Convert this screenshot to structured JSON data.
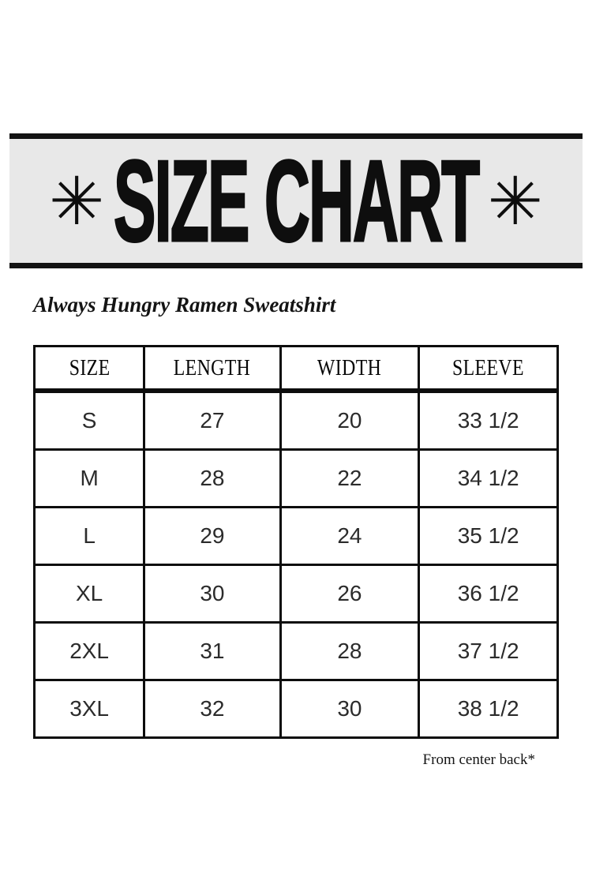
{
  "banner": {
    "title": "SIZE CHART",
    "asterisk": "✳",
    "background_color": "#e8e8e8",
    "bar_color": "#131313"
  },
  "product": {
    "name": "Always Hungry Ramen Sweatshirt"
  },
  "table": {
    "headers": [
      "SIZE",
      "LENGTH",
      "WIDTH",
      "SLEEVE"
    ],
    "rows": [
      [
        "S",
        "27",
        "20",
        "33 1/2"
      ],
      [
        "M",
        "28",
        "22",
        "34 1/2"
      ],
      [
        "L",
        "29",
        "24",
        "35 1/2"
      ],
      [
        "XL",
        "30",
        "26",
        "36 1/2"
      ],
      [
        "2XL",
        "31",
        "28",
        "37 1/2"
      ],
      [
        "3XL",
        "32",
        "30",
        "38 1/2"
      ]
    ]
  },
  "footnote": "From center back*"
}
